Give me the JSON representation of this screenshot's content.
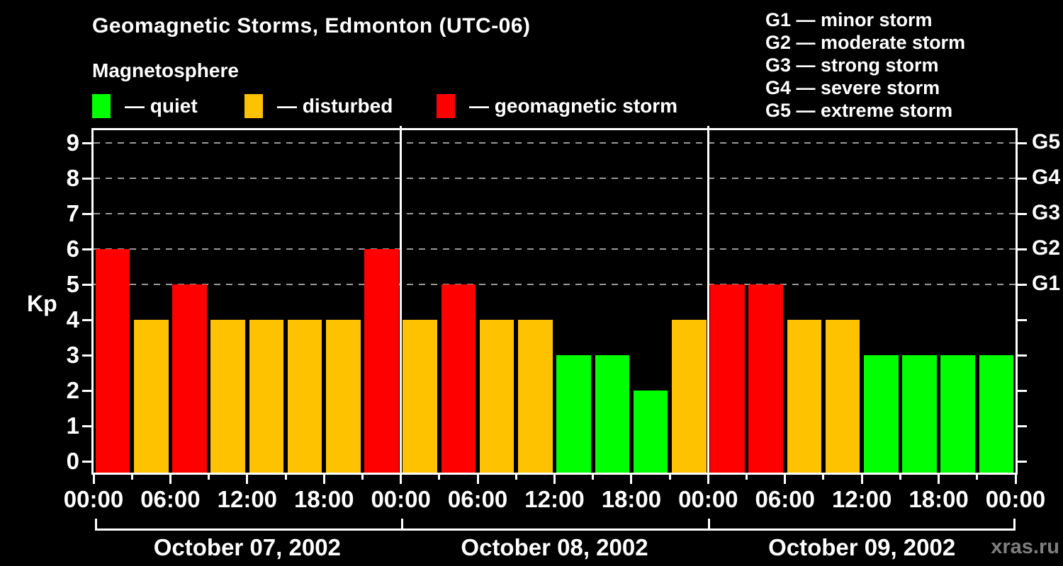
{
  "title": "Geomagnetic Storms, Edmonton (UTC-06)",
  "subtitle": "Magnetosphere",
  "legend": {
    "items": [
      {
        "condition": "quiet",
        "label": "— quiet",
        "color": "#00FF00"
      },
      {
        "condition": "disturbed",
        "label": "— disturbed",
        "color": "#FFC200"
      },
      {
        "condition": "storm",
        "label": "— geomagnetic storm",
        "color": "#FF0000"
      }
    ]
  },
  "storm_scale": [
    {
      "level": "G1",
      "name": "minor storm",
      "kp": 5
    },
    {
      "level": "G2",
      "name": "moderate storm",
      "kp": 6
    },
    {
      "level": "G3",
      "name": "strong storm",
      "kp": 7
    },
    {
      "level": "G4",
      "name": "severe storm",
      "kp": 8
    },
    {
      "level": "G5",
      "name": "extreme storm",
      "kp": 9
    }
  ],
  "watermark": "xras.ru",
  "chart_data": {
    "type": "bar",
    "title": "Geomagnetic Storms, Edmonton (UTC-06)",
    "ylabel": "Kp",
    "ylim": [
      0,
      9
    ],
    "yticks": [
      0,
      1,
      2,
      3,
      4,
      5,
      6,
      7,
      8,
      9
    ],
    "gridlines_at_kp": [
      5,
      6,
      7,
      8,
      9
    ],
    "grid_style": "dashed",
    "legend_position": "top-left",
    "right_axis_labels": [
      {
        "kp": 5,
        "label": "G1"
      },
      {
        "kp": 6,
        "label": "G2"
      },
      {
        "kp": 7,
        "label": "G3"
      },
      {
        "kp": 8,
        "label": "G4"
      },
      {
        "kp": 9,
        "label": "G5"
      }
    ],
    "interval_hours": 3,
    "time_tick_labels": [
      "00:00",
      "06:00",
      "12:00",
      "18:00"
    ],
    "final_time_label": "00:00",
    "days": [
      {
        "date": "October 07, 2002",
        "kp_values": [
          6,
          4,
          5,
          4,
          4,
          4,
          4,
          6
        ],
        "conditions": [
          "storm",
          "disturbed",
          "storm",
          "disturbed",
          "disturbed",
          "disturbed",
          "disturbed",
          "storm"
        ]
      },
      {
        "date": "October 08, 2002",
        "kp_values": [
          4,
          5,
          4,
          4,
          3,
          3,
          2,
          4
        ],
        "conditions": [
          "disturbed",
          "storm",
          "disturbed",
          "disturbed",
          "quiet",
          "quiet",
          "quiet",
          "disturbed"
        ]
      },
      {
        "date": "October 09, 2002",
        "kp_values": [
          5,
          5,
          4,
          4,
          3,
          3,
          3,
          3
        ],
        "conditions": [
          "storm",
          "storm",
          "disturbed",
          "disturbed",
          "quiet",
          "quiet",
          "quiet",
          "quiet"
        ]
      }
    ],
    "colors": {
      "quiet": "#00FF00",
      "disturbed": "#FFC200",
      "storm": "#FF0000"
    }
  }
}
